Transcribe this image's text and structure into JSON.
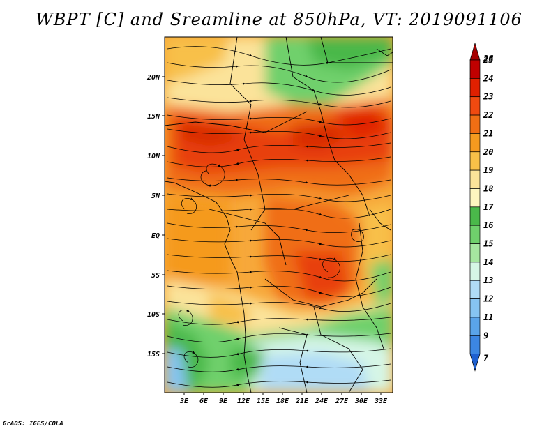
{
  "title": "WBPT [C] and Sreamline at 850hPa, VT: 2019091106",
  "credit": "GrADS: IGES/COLA",
  "map": {
    "lat_labels": [
      "20N",
      "15N",
      "10N",
      "5N",
      "EQ",
      "5S",
      "10S",
      "15S"
    ],
    "lon_labels": [
      "3E",
      "6E",
      "9E",
      "12E",
      "15E",
      "18E",
      "21E",
      "24E",
      "27E",
      "30E",
      "33E"
    ]
  },
  "colorbar": {
    "levels": [
      "26",
      "25",
      "24",
      "23",
      "22",
      "21",
      "20",
      "19",
      "18",
      "17",
      "16",
      "15",
      "14",
      "13",
      "12",
      "11",
      "9",
      "7"
    ],
    "colors": [
      "#a50000",
      "#c00000",
      "#e02000",
      "#f04a10",
      "#f06e14",
      "#f59a1f",
      "#f8c048",
      "#fbe39a",
      "#fdf6c0",
      "#4ab84a",
      "#6fd06c",
      "#a6e6a0",
      "#d6f6e6",
      "#b0dcf6",
      "#86c4f2",
      "#5aa4ea",
      "#3c86e2",
      "#1f60d0"
    ]
  }
}
